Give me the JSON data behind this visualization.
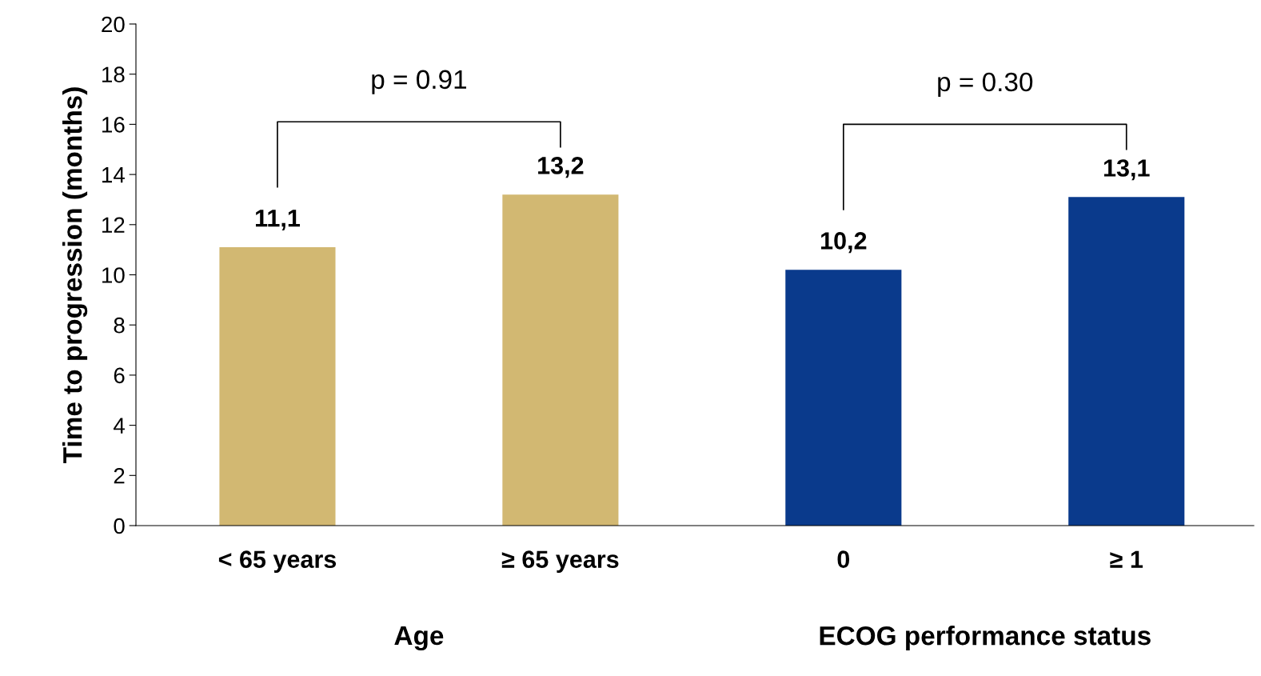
{
  "chart_data": {
    "type": "bar",
    "ylabel": "Time to progression (months)",
    "categories": [
      "< 65 years",
      "≥ 65 years",
      "0",
      "≥ 1"
    ],
    "values": [
      11.1,
      13.2,
      10.2,
      13.1
    ],
    "colors": [
      "#d2b872",
      "#d2b872",
      "#0a3a8c",
      "#0a3a8c"
    ],
    "value_labels": [
      "11,1",
      "13,2",
      "10,2",
      "13,1"
    ],
    "ylim": [
      0,
      20
    ],
    "yticks": [
      0,
      2,
      4,
      6,
      8,
      10,
      12,
      14,
      16,
      18,
      20
    ],
    "grid": false,
    "legend": false,
    "annotations": [
      "Age",
      "ECOG performance status",
      "p = 0.91",
      "p = 0.30"
    ]
  }
}
